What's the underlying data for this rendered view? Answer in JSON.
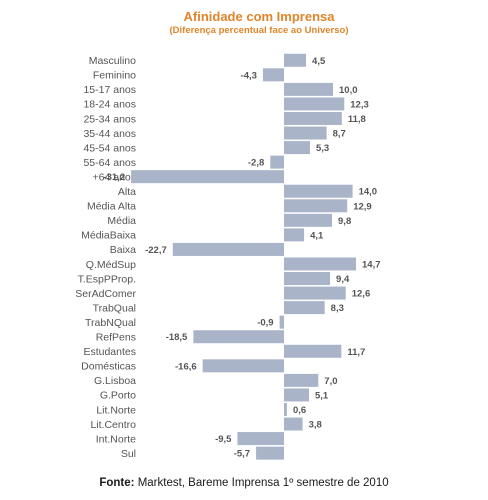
{
  "chart_data": {
    "type": "bar",
    "orientation": "horizontal",
    "title": "Afinidade com Imprensa",
    "subtitle": "(Diferença percentual face ao Universo)",
    "categories": [
      "Masculino",
      "Feminino",
      "15-17 anos",
      "18-24 anos",
      "25-34 anos",
      "35-44 anos",
      "45-54 anos",
      "55-64 anos",
      "+64 anos",
      "Alta",
      "Média Alta",
      "Média",
      "MédiaBaixa",
      "Baixa",
      "Q.MédSup",
      "T.EspPProp.",
      "SerAdComer",
      "TrabQual",
      "TrabNQual",
      "RefPens",
      "Estudantes",
      "Domésticas",
      "G.Lisboa",
      "G.Porto",
      "Lit.Norte",
      "Lit.Centro",
      "Int.Norte",
      "Sul"
    ],
    "values": [
      4.5,
      -4.3,
      10.0,
      12.3,
      11.8,
      8.7,
      5.3,
      -2.8,
      -31.2,
      14.0,
      12.9,
      9.8,
      4.1,
      -22.7,
      14.7,
      9.4,
      12.6,
      8.3,
      -0.9,
      -18.5,
      11.7,
      -16.6,
      7.0,
      5.1,
      0.6,
      3.8,
      -9.5,
      -5.7
    ],
    "value_labels": [
      "4,5",
      "-4,3",
      "10,0",
      "12,3",
      "11,8",
      "8,7",
      "5,3",
      "-2,8",
      "-31,2",
      "14,0",
      "12,9",
      "9,8",
      "4,1",
      "-22,7",
      "14,7",
      "9,4",
      "12,6",
      "8,3",
      "-0,9",
      "-18,5",
      "11,7",
      "-16,6",
      "7,0",
      "5,1",
      "0,6",
      "3,8",
      "-9,5",
      "-5,7"
    ],
    "xlim": [
      -32,
      16
    ],
    "grid": false,
    "legend": "none",
    "bar_color": "#aab4c8",
    "divider_color": "#aab4c8"
  },
  "source": {
    "label": "Fonte:",
    "text": " Marktest, Bareme Imprensa 1º semestre de 2010"
  },
  "colors": {
    "title": "#e0852a",
    "text": "#555555"
  }
}
